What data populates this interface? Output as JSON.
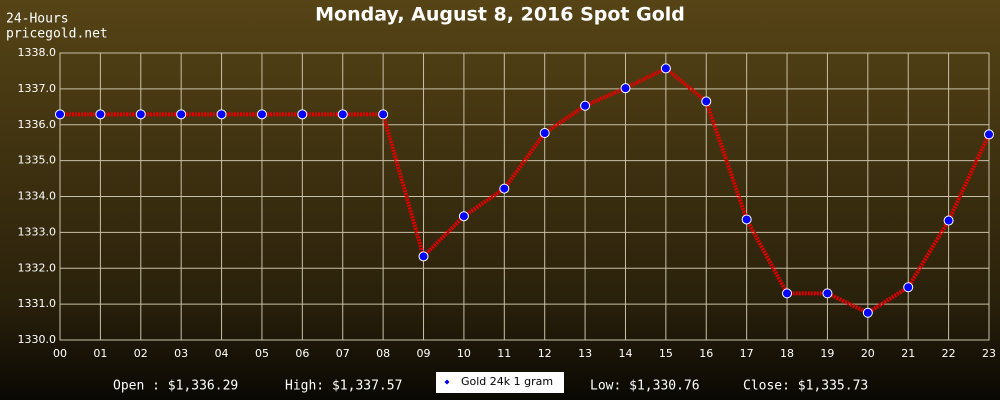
{
  "chart_data": {
    "type": "line",
    "title": "Monday, August 8, 2016 Spot Gold",
    "subtitle": "24-Hours",
    "source": "pricegold.net",
    "categories": [
      "00",
      "01",
      "02",
      "03",
      "04",
      "05",
      "06",
      "07",
      "08",
      "09",
      "10",
      "11",
      "12",
      "13",
      "14",
      "15",
      "16",
      "17",
      "18",
      "19",
      "20",
      "21",
      "22",
      "23"
    ],
    "series": [
      {
        "name": "Gold 24k 1 gram",
        "color": "#e00000",
        "marker_color": "#0000ff",
        "values": [
          1336.29,
          1336.29,
          1336.29,
          1336.29,
          1336.29,
          1336.29,
          1336.29,
          1336.29,
          1336.29,
          1332.33,
          1333.45,
          1334.22,
          1335.77,
          1336.53,
          1337.02,
          1337.57,
          1336.65,
          1333.36,
          1331.3,
          1331.3,
          1330.76,
          1331.47,
          1333.33,
          1335.73
        ]
      }
    ],
    "ylim": [
      1330,
      1338
    ],
    "yticks": [
      {
        "value": 1330,
        "label": "1330.0"
      },
      {
        "value": 1331,
        "label": "1331.0"
      },
      {
        "value": 1332,
        "label": "1332.0"
      },
      {
        "value": 1333,
        "label": "1333.0"
      },
      {
        "value": 1334,
        "label": "1334.0"
      },
      {
        "value": 1335,
        "label": "1335.0"
      },
      {
        "value": 1336,
        "label": "1336.0"
      },
      {
        "value": 1337,
        "label": "1337.0"
      },
      {
        "value": 1338,
        "label": "1338.0"
      }
    ],
    "grid": true,
    "footer": {
      "open": "Open : $1,336.29",
      "high": "High: $1,337.57",
      "low": "Low: $1,330.76",
      "close": "Close: $1,335.73"
    }
  }
}
